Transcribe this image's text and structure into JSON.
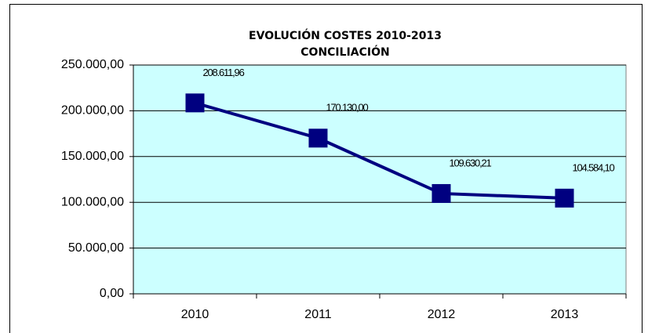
{
  "chart_data": {
    "type": "line",
    "title": "EVOLUCIÓN COSTES 2010-2013",
    "subtitle": "CONCILIACIÓN",
    "categories": [
      "2010",
      "2011",
      "2012",
      "2013"
    ],
    "series": [
      {
        "name": "Costes",
        "color": "#000080",
        "values": [
          208611.96,
          170130.0,
          109630.21,
          104584.1
        ],
        "value_labels": [
          "208.611,96",
          "170.130,00",
          "109.630,21",
          "104.584,10"
        ]
      }
    ],
    "ylim": [
      0,
      250000
    ],
    "yticks": [
      {
        "value": 0,
        "label": "0,00"
      },
      {
        "value": 50000,
        "label": "50.000,00"
      },
      {
        "value": 100000,
        "label": "100.000,00"
      },
      {
        "value": 150000,
        "label": "150.000,00"
      },
      {
        "value": 200000,
        "label": "200.000,00"
      },
      {
        "value": 250000,
        "label": "250.000,00"
      }
    ],
    "grid": true,
    "plot_background": "#ccffff"
  }
}
